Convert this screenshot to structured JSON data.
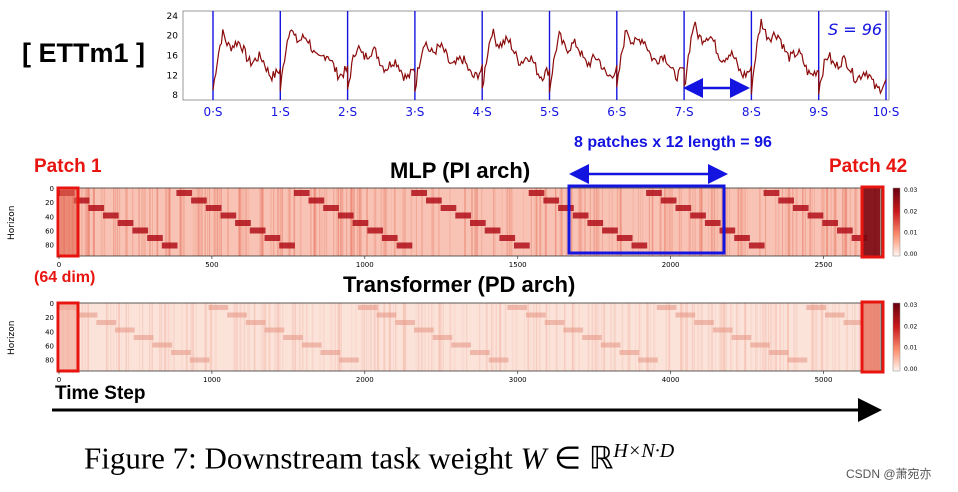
{
  "dataset_label": "[ ETTm1 ]",
  "top_plot": {
    "y_ticks": [
      "24",
      "20",
      "16",
      "12",
      "8"
    ],
    "x_ticks": [
      "0·S",
      "1·S",
      "2·S",
      "3·S",
      "4·S",
      "5·S",
      "6·S",
      "7·S",
      "8·S",
      "9·S",
      "10·S"
    ],
    "s_label": "S = 96",
    "series_color": "#8b0a0a",
    "boundary_color": "#1414e0"
  },
  "annotations": {
    "patches_note": "8 patches x 12 length = 96",
    "patch_first": "Patch 1",
    "patch_last": "Patch 42",
    "dim_note": "(64 dim)"
  },
  "heatmaps": [
    {
      "title": "MLP (PI arch)",
      "ylabel": "Horizon",
      "y_ticks": [
        "0",
        "20",
        "40",
        "60",
        "80"
      ],
      "x_ticks": [
        "0",
        "500",
        "1000",
        "1500",
        "2000",
        "2500"
      ],
      "x_max": 2688,
      "colorbar_ticks": [
        "0.03",
        "0.02",
        "0.01",
        "0.00"
      ]
    },
    {
      "title": "Transformer (PD arch)",
      "ylabel": "Horizon",
      "y_ticks": [
        "0",
        "20",
        "40",
        "60",
        "80"
      ],
      "x_ticks": [
        "0",
        "1000",
        "2000",
        "3000",
        "4000",
        "5000"
      ],
      "x_max": 5376,
      "colorbar_ticks": [
        "0.03",
        "0.02",
        "0.01",
        "0.00"
      ]
    }
  ],
  "time_step_label": "Time Step",
  "caption": {
    "text": "Figure 7: Downstream task weight ",
    "math_var": "W",
    "math_in": " ∈ ",
    "math_set": "ℝ",
    "math_sup": "H×N·D"
  },
  "watermark": "CSDN @萧宛亦"
}
